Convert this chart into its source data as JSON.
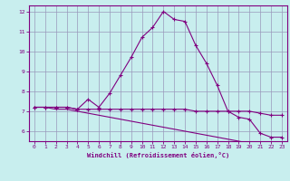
{
  "title": "",
  "xlabel": "Windchill (Refroidissement éolien,°C)",
  "ylabel": "",
  "background_color": "#c8eeee",
  "line_color": "#800080",
  "grid_color": "#9999bb",
  "x_values": [
    0,
    1,
    2,
    3,
    4,
    5,
    6,
    7,
    8,
    9,
    10,
    11,
    12,
    13,
    14,
    15,
    16,
    17,
    18,
    19,
    20,
    21,
    22,
    23
  ],
  "line1_y": [
    7.2,
    7.2,
    7.2,
    7.2,
    7.1,
    7.6,
    7.2,
    7.9,
    8.8,
    9.7,
    10.7,
    11.2,
    12.0,
    11.6,
    11.5,
    10.3,
    9.4,
    8.3,
    7.0,
    6.7,
    6.6,
    5.9,
    5.7,
    5.7
  ],
  "line2_y": [
    7.2,
    7.2,
    7.2,
    7.2,
    7.1,
    7.1,
    7.1,
    7.1,
    7.1,
    7.1,
    7.1,
    7.1,
    7.1,
    7.1,
    7.1,
    7.0,
    7.0,
    7.0,
    7.0,
    7.0,
    7.0,
    6.9,
    6.8,
    6.8
  ],
  "line3_y": [
    7.2,
    7.2,
    7.1,
    7.1,
    7.0,
    6.9,
    6.8,
    6.7,
    6.6,
    6.5,
    6.4,
    6.3,
    6.2,
    6.1,
    6.0,
    5.9,
    5.8,
    5.7,
    5.6,
    5.5,
    5.4,
    5.4,
    5.3,
    5.3
  ],
  "ylim": [
    5.5,
    12.3
  ],
  "yticks": [
    6,
    7,
    8,
    9,
    10,
    11,
    12
  ],
  "xticks": [
    0,
    1,
    2,
    3,
    4,
    5,
    6,
    7,
    8,
    9,
    10,
    11,
    12,
    13,
    14,
    15,
    16,
    17,
    18,
    19,
    20,
    21,
    22,
    23
  ]
}
